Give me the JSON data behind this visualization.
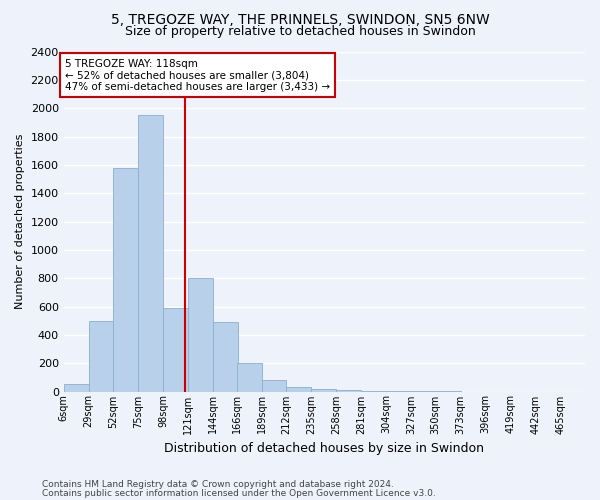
{
  "title_line1": "5, TREGOZE WAY, THE PRINNELS, SWINDON, SN5 6NW",
  "title_line2": "Size of property relative to detached houses in Swindon",
  "xlabel": "Distribution of detached houses by size in Swindon",
  "ylabel": "Number of detached properties",
  "footer_line1": "Contains HM Land Registry data © Crown copyright and database right 2024.",
  "footer_line2": "Contains public sector information licensed under the Open Government Licence v3.0.",
  "annotation_line1": "5 TREGOZE WAY: 118sqm",
  "annotation_line2": "← 52% of detached houses are smaller (3,804)",
  "annotation_line3": "47% of semi-detached houses are larger (3,433) →",
  "property_size": 118,
  "bar_color": "#b8d0ea",
  "bar_edge_color": "#8ab0d0",
  "vline_color": "#cc0000",
  "background_color": "#eef2fa",
  "grid_color": "#ffffff",
  "tick_labels": [
    "6sqm",
    "29sqm",
    "52sqm",
    "75sqm",
    "98sqm",
    "121sqm",
    "144sqm",
    "166sqm",
    "189sqm",
    "212sqm",
    "235sqm",
    "258sqm",
    "281sqm",
    "304sqm",
    "327sqm",
    "350sqm",
    "373sqm",
    "396sqm",
    "419sqm",
    "442sqm",
    "465sqm"
  ],
  "bin_left_edges": [
    6,
    29,
    52,
    75,
    98,
    121,
    144,
    166,
    189,
    212,
    235,
    258,
    281,
    304,
    327,
    350,
    373,
    396,
    419,
    442,
    465
  ],
  "values": [
    50,
    500,
    1580,
    1950,
    590,
    800,
    490,
    200,
    80,
    30,
    15,
    8,
    5,
    4,
    3,
    2,
    0,
    0,
    0,
    0,
    0
  ],
  "ylim": [
    0,
    2400
  ],
  "yticks": [
    0,
    200,
    400,
    600,
    800,
    1000,
    1200,
    1400,
    1600,
    1800,
    2000,
    2200,
    2400
  ]
}
